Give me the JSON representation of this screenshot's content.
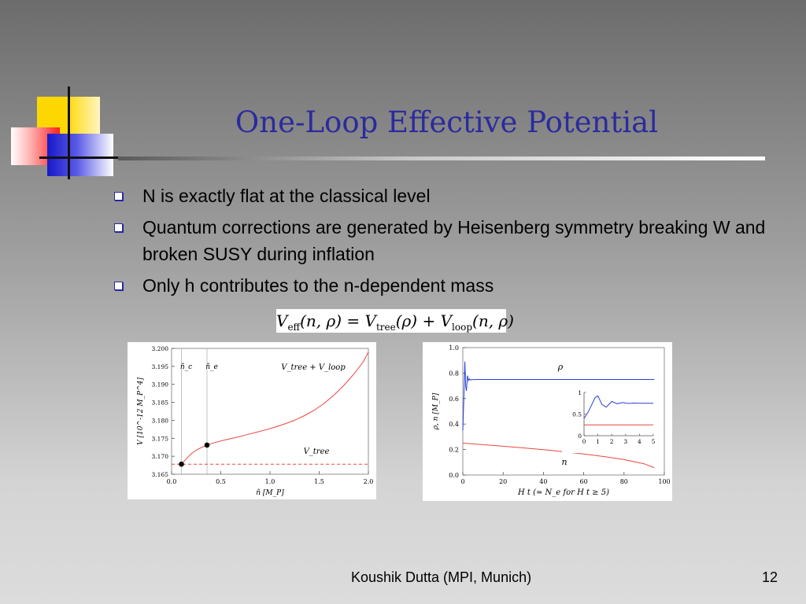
{
  "slide": {
    "title": "One-Loop Effective Potential",
    "bullets": [
      "N is exactly flat at the classical level",
      "Quantum corrections are generated by Heisenberg symmetry breaking W and broken SUSY during inflation",
      "Only h contributes to the n-dependent mass"
    ],
    "formula": {
      "lhs": "V",
      "lhs_sub": "eff",
      "lhs_args": "(n, ρ) = ",
      "term1": "V",
      "term1_sub": "tree",
      "term1_args": "(ρ) + ",
      "term2": "V",
      "term2_sub": "loop",
      "term2_args": "(n, ρ)"
    },
    "footer_author": "Koushik Dutta (MPI, Munich)",
    "page_number": "12"
  },
  "colors": {
    "title": "#2b2b9e",
    "red_curve": "#e8473c",
    "blue_curve": "#2a3fd8"
  },
  "chart_data": [
    {
      "type": "line",
      "xlabel": "ñ [M_P]",
      "ylabel": "V [10^-12 M_P^4]",
      "xlim": [
        0.0,
        2.0
      ],
      "ylim": [
        3.165,
        3.2
      ],
      "xticks": [
        "0.0",
        "0.5",
        "1.0",
        "1.5",
        "2.0"
      ],
      "yticks": [
        "3.165",
        "3.170",
        "3.175",
        "3.180",
        "3.185",
        "3.190",
        "3.195",
        "3.200"
      ],
      "series": [
        {
          "name": "V_tree + V_loop",
          "style": "solid",
          "x": [
            0.1,
            0.15,
            0.2,
            0.25,
            0.3,
            0.36,
            0.45,
            0.55,
            0.65,
            0.75,
            0.85,
            0.95,
            1.05,
            1.15,
            1.25,
            1.35,
            1.45,
            1.55,
            1.65,
            1.75,
            1.85,
            1.95,
            2.0
          ],
          "y": [
            3.1678,
            3.1693,
            3.1707,
            3.1717,
            3.1724,
            3.1731,
            3.1739,
            3.1746,
            3.1752,
            3.1759,
            3.1766,
            3.1773,
            3.1781,
            3.179,
            3.18,
            3.1813,
            3.1828,
            3.1847,
            3.187,
            3.1897,
            3.1928,
            3.1964,
            3.199
          ]
        },
        {
          "name": "V_tree",
          "style": "dashed",
          "x": [
            0.0,
            2.0
          ],
          "y": [
            3.1678,
            3.1678
          ]
        }
      ],
      "points": [
        {
          "x": 0.1,
          "y": 3.1678
        },
        {
          "x": 0.36,
          "y": 3.1731
        }
      ],
      "vlines": [
        {
          "x": 0.1,
          "label": "ñ_c"
        },
        {
          "x": 0.36,
          "label": "ñ_e"
        }
      ],
      "annotations": [
        "V_tree + V_loop",
        "V_tree"
      ]
    },
    {
      "type": "line",
      "xlabel": "H t  (≃ N_e for H t ≥ 5)",
      "ylabel": "ρ, n [M_P]",
      "xlim": [
        0,
        100
      ],
      "ylim": [
        0.0,
        1.0
      ],
      "xticks": [
        "0",
        "20",
        "40",
        "60",
        "80",
        "100"
      ],
      "yticks": [
        "0.0",
        "0.2",
        "0.4",
        "0.6",
        "0.8",
        "1.0"
      ],
      "series": [
        {
          "name": "ρ",
          "x": [
            0,
            0.5,
            1,
            1.4,
            1.8,
            2.3,
            2.8,
            3.3,
            3.8,
            4.5,
            5.5,
            7,
            10,
            20,
            40,
            60,
            80,
            95
          ],
          "y": [
            0.35,
            0.6,
            0.89,
            0.7,
            0.66,
            0.78,
            0.74,
            0.755,
            0.745,
            0.75,
            0.748,
            0.75,
            0.75,
            0.75,
            0.75,
            0.75,
            0.75,
            0.75
          ]
        },
        {
          "name": "n",
          "x": [
            0,
            10,
            20,
            30,
            40,
            50,
            60,
            70,
            80,
            90,
            95
          ],
          "y": [
            0.25,
            0.238,
            0.226,
            0.213,
            0.199,
            0.183,
            0.165,
            0.145,
            0.121,
            0.088,
            0.058
          ]
        }
      ],
      "annotations": [
        "ρ",
        "n"
      ],
      "inset": {
        "xlim": [
          0,
          5
        ],
        "ylim": [
          0,
          1
        ],
        "xticks": [
          "0",
          "1",
          "2",
          "3",
          "4",
          "5"
        ],
        "yticks": [
          "0",
          "0.5",
          "1"
        ],
        "series": [
          {
            "name": "ρ",
            "x": [
              0,
              0.3,
              0.6,
              0.8,
              1.0,
              1.3,
              1.6,
              2.0,
              2.4,
              2.8,
              3.2,
              3.6,
              4.0,
              4.5,
              5.0
            ],
            "y": [
              0.4,
              0.55,
              0.75,
              0.88,
              0.92,
              0.72,
              0.66,
              0.79,
              0.74,
              0.765,
              0.745,
              0.755,
              0.75,
              0.75,
              0.75
            ]
          },
          {
            "name": "n",
            "x": [
              0,
              5
            ],
            "y": [
              0.25,
              0.25
            ]
          }
        ]
      }
    }
  ]
}
